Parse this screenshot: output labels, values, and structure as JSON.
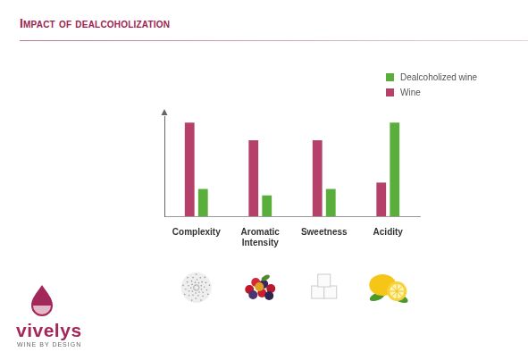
{
  "chart_data": {
    "type": "bar",
    "title": "Impact of dealcoholization",
    "categories": [
      "Complexity",
      "Aromatic Intensity",
      "Sweetness",
      "Acidity"
    ],
    "series": [
      {
        "name": "Wine",
        "color": "#b5416b",
        "values": [
          117,
          95,
          95,
          42
        ]
      },
      {
        "name": "Dealcoholized wine",
        "color": "#5aae3b",
        "values": [
          34,
          26,
          34,
          117
        ]
      }
    ],
    "ylim": [
      0,
      125
    ],
    "grid": false,
    "legend": "upper right",
    "tick_labels": "x"
  },
  "logo": {
    "name": "vivelys",
    "tagline": "WINE BY DESIGN"
  }
}
